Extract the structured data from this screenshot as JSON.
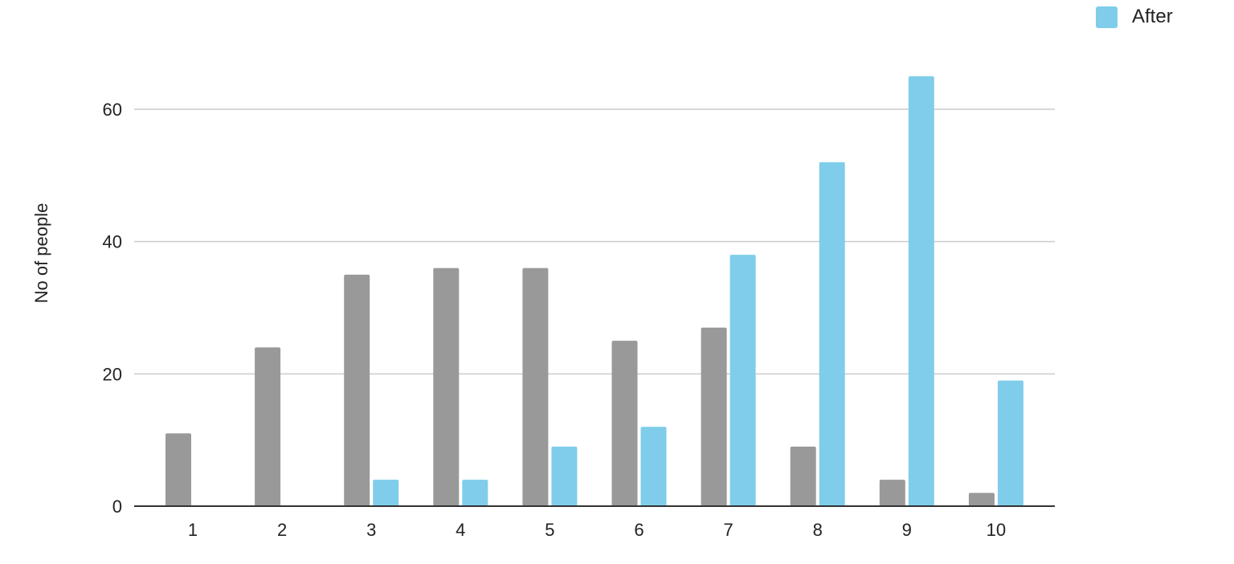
{
  "chart_data": {
    "type": "bar",
    "title": "",
    "xlabel": "",
    "ylabel": "No of people",
    "categories": [
      "1",
      "2",
      "3",
      "4",
      "5",
      "6",
      "7",
      "8",
      "9",
      "10"
    ],
    "ylim": [
      0,
      68
    ],
    "yticks": [
      0,
      20,
      40,
      60
    ],
    "grid": true,
    "legend_position": "top-right",
    "series": [
      {
        "color": "#999999",
        "values": [
          11,
          24,
          35,
          36,
          36,
          25,
          27,
          9,
          4,
          2
        ]
      },
      {
        "name": "After",
        "color": "#7fcdea",
        "values": [
          0,
          0,
          4,
          4,
          9,
          12,
          38,
          52,
          65,
          19
        ]
      }
    ]
  }
}
